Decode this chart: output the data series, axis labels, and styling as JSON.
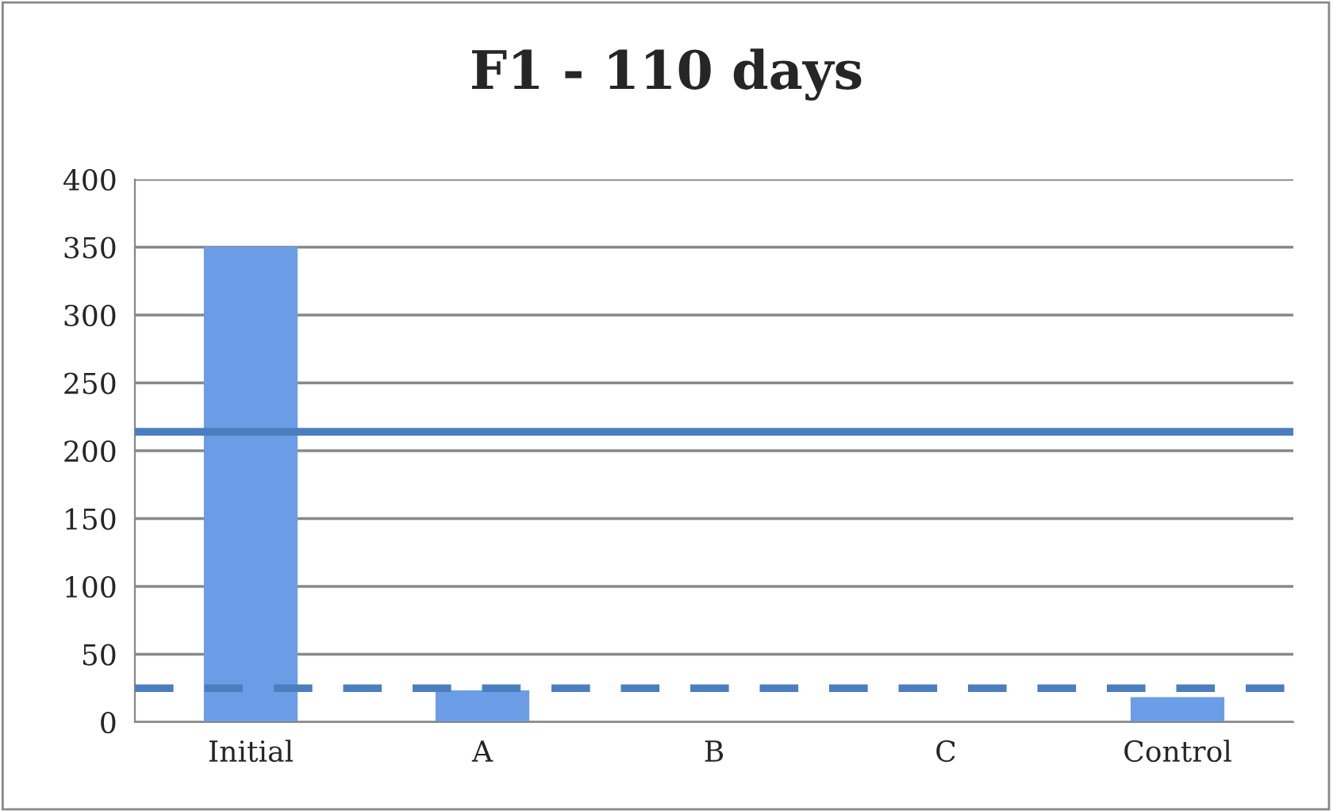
{
  "chart_data": {
    "type": "bar",
    "title": "F1 - 110 days",
    "categories": [
      "Initial",
      "A",
      "B",
      "C",
      "Control"
    ],
    "values": [
      350,
      23,
      0,
      0,
      18
    ],
    "color": "#6a9de6",
    "ylim": [
      0,
      400
    ],
    "yticks": [
      0,
      50,
      100,
      150,
      200,
      250,
      300,
      350,
      400
    ],
    "grid": "y",
    "ref_lines": [
      {
        "axis": "y",
        "value": 214,
        "color": "#4a7ebf",
        "line_style": "solid"
      },
      {
        "axis": "y",
        "value": 25,
        "color": "#4a7ebf",
        "line_style": "dashed"
      }
    ]
  }
}
